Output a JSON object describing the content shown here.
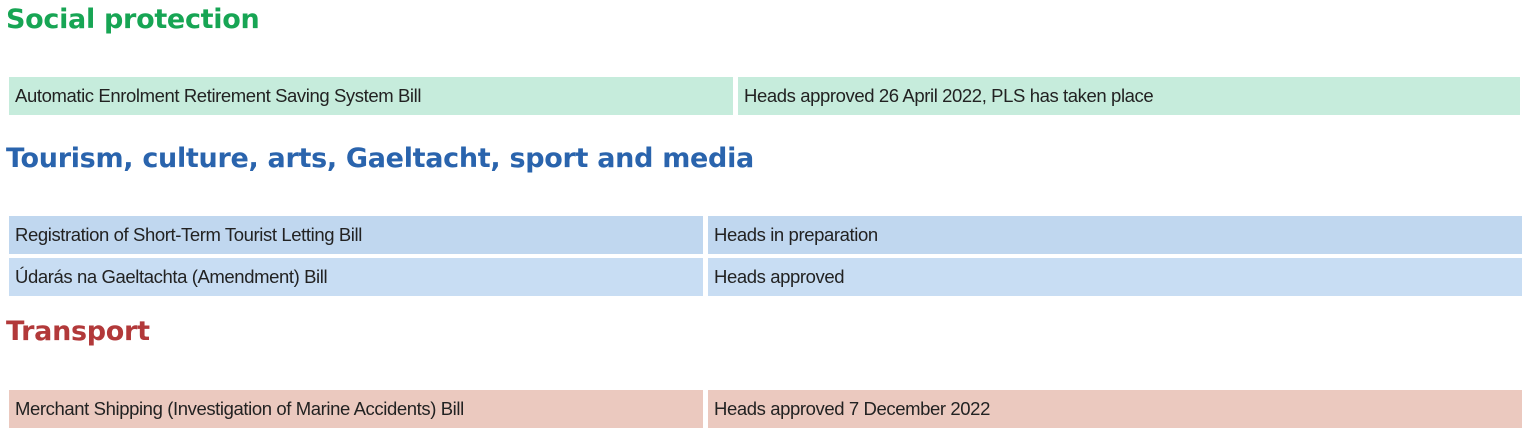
{
  "colors": {
    "social_heading": "#17a554",
    "tourism_heading": "#2a64ad",
    "transport_heading": "#b2393a",
    "social_row": "#c6ecdc",
    "tourism_row_1": "#c0d7ef",
    "tourism_row_2": "#c8ddf3",
    "transport_row": "#ebc9bf"
  },
  "sections": [
    {
      "title": "Social protection",
      "rows": [
        {
          "bill": "Automatic Enrolment Retirement Saving System Bill",
          "status": "Heads approved 26 April 2022, PLS has taken place"
        }
      ]
    },
    {
      "title": "Tourism, culture, arts, Gaeltacht, sport and media",
      "rows": [
        {
          "bill": "Registration of Short-Term Tourist Letting Bill",
          "status": "Heads in preparation"
        },
        {
          "bill": "Údarás na Gaeltachta (Amendment) Bill",
          "status": "Heads approved"
        }
      ]
    },
    {
      "title": "Transport",
      "rows": [
        {
          "bill": "Merchant Shipping (Investigation of Marine Accidents) Bill",
          "status": "Heads approved 7 December 2022"
        }
      ]
    }
  ]
}
